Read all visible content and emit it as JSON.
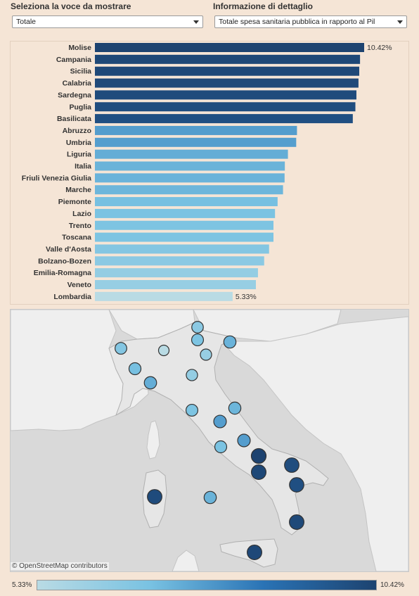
{
  "controls": {
    "voce_label": "Seleziona la voce da mostrare",
    "voce_value": "Totale",
    "dettaglio_label": "Informazione di dettaglio",
    "dettaglio_value": "Totale spesa sanitaria pubblica in rapporto al Pil"
  },
  "chart_data": {
    "type": "bar",
    "orientation": "horizontal",
    "categories": [
      "Molise",
      "Campania",
      "Sicilia",
      "Calabria",
      "Sardegna",
      "Puglia",
      "Basilicata",
      "Abruzzo",
      "Umbria",
      "Liguria",
      "Italia",
      "Friuli Venezia Giulia",
      "Marche",
      "Piemonte",
      "Lazio",
      "Trento",
      "Toscana",
      "Valle d'Aosta",
      "Bolzano-Bozen",
      "Emilia-Romagna",
      "Veneto",
      "Lombardia"
    ],
    "values": [
      10.42,
      10.26,
      10.23,
      10.2,
      10.12,
      10.08,
      9.98,
      7.82,
      7.79,
      7.47,
      7.35,
      7.34,
      7.28,
      7.07,
      6.97,
      6.91,
      6.91,
      6.74,
      6.55,
      6.31,
      6.23,
      5.33
    ],
    "data_labels": {
      "Molise": "10.42%",
      "Lombardia": "5.33%"
    },
    "color_scale": {
      "min": 5.33,
      "max": 10.42,
      "min_label": "5.33%",
      "max_label": "10.42%",
      "colors": [
        "#b9dbe4",
        "#79c2e2",
        "#2a73b5",
        "#1d4370"
      ]
    }
  },
  "map": {
    "attribution": "© OpenStreetMap contributors",
    "colors": {
      "sea": "#d9d9d9",
      "land": "#efefef",
      "border": "#c4c4c4",
      "italy": "#e6e6e6"
    },
    "markers": [
      {
        "region": "Valle d'Aosta",
        "value": 6.74
      },
      {
        "region": "Piemonte",
        "value": 7.07
      },
      {
        "region": "Lombardia",
        "value": 5.33
      },
      {
        "region": "Liguria",
        "value": 7.47
      },
      {
        "region": "Bolzano-Bozen",
        "value": 6.55
      },
      {
        "region": "Trento",
        "value": 6.91
      },
      {
        "region": "Veneto",
        "value": 6.23
      },
      {
        "region": "Friuli Venezia Giulia",
        "value": 7.34
      },
      {
        "region": "Emilia-Romagna",
        "value": 6.31
      },
      {
        "region": "Toscana",
        "value": 6.91
      },
      {
        "region": "Umbria",
        "value": 7.79
      },
      {
        "region": "Marche",
        "value": 7.28
      },
      {
        "region": "Lazio",
        "value": 6.97
      },
      {
        "region": "Abruzzo",
        "value": 7.82
      },
      {
        "region": "Molise",
        "value": 10.42
      },
      {
        "region": "Campania",
        "value": 10.26
      },
      {
        "region": "Puglia",
        "value": 10.08
      },
      {
        "region": "Basilicata",
        "value": 9.98
      },
      {
        "region": "Calabria",
        "value": 10.2
      },
      {
        "region": "Sicilia",
        "value": 10.23
      },
      {
        "region": "Sardegna",
        "value": 10.12
      },
      {
        "region": "Italia",
        "value": 7.35
      }
    ]
  }
}
